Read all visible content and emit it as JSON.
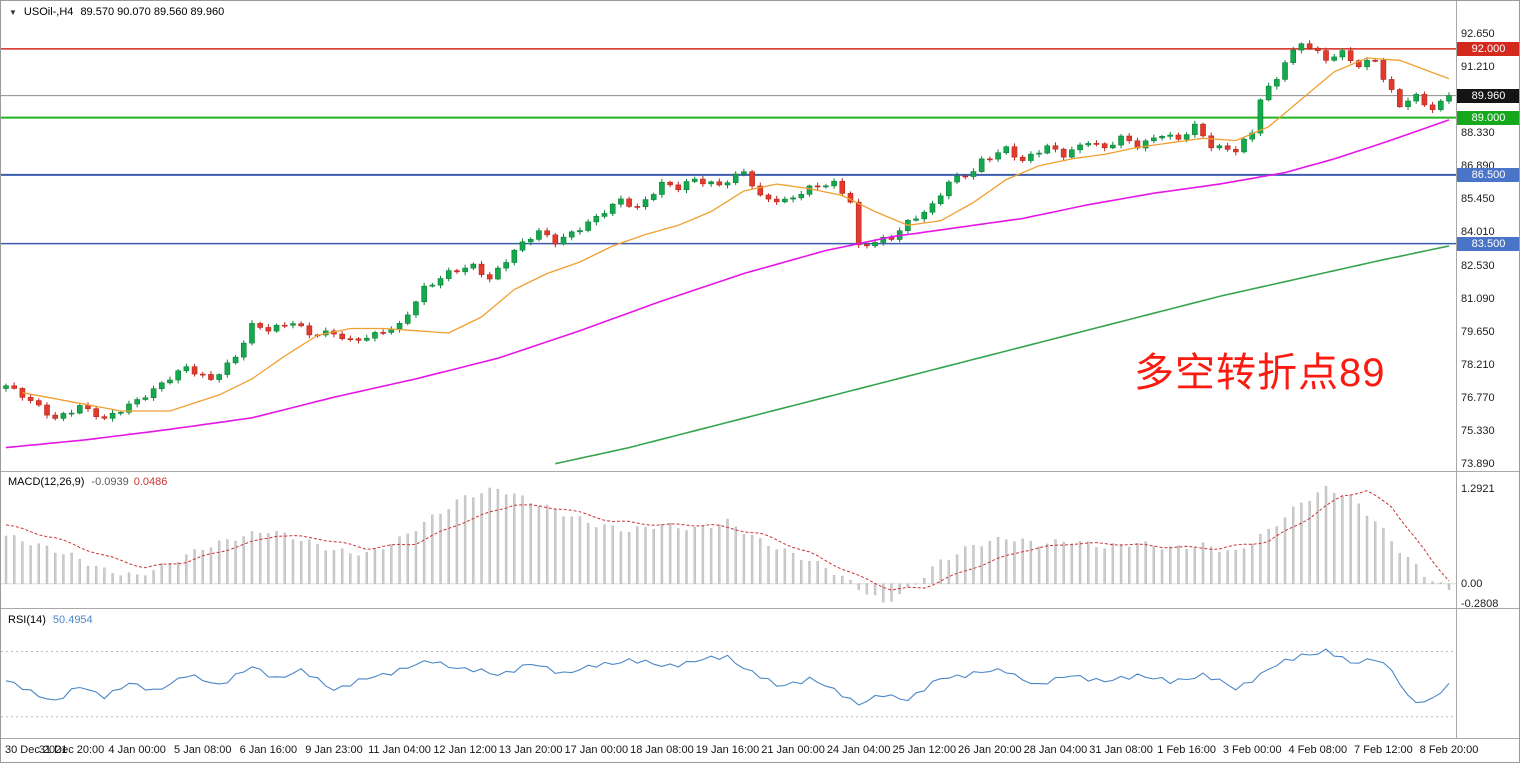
{
  "header": {
    "symbol": "USOil-,H4",
    "ohlc": "89.570 90.070 89.560 89.960",
    "dropdown_glyph": "▼"
  },
  "annotation": {
    "text": "多空转折点89",
    "color": "#fb1a10"
  },
  "chart_data": {
    "type": "candlestick",
    "symbol": "USOil",
    "timeframe": "H4",
    "current_bar": {
      "open": 89.57,
      "high": 90.07,
      "low": 89.56,
      "close": 89.96
    },
    "ylim": [
      73.58,
      93.74
    ],
    "grid": false,
    "candles": {
      "count": 177,
      "close_anchors": [
        [
          0,
          77.3
        ],
        [
          3,
          76.6
        ],
        [
          6,
          75.9
        ],
        [
          9,
          76.4
        ],
        [
          12,
          75.8
        ],
        [
          15,
          76.5
        ],
        [
          18,
          77.1
        ],
        [
          22,
          78.1
        ],
        [
          25,
          77.6
        ],
        [
          28,
          78.5
        ],
        [
          30,
          79.9
        ],
        [
          32,
          79.8
        ],
        [
          35,
          80.1
        ],
        [
          37,
          79.5
        ],
        [
          40,
          79.6
        ],
        [
          42,
          79.3
        ],
        [
          45,
          79.5
        ],
        [
          48,
          79.9
        ],
        [
          51,
          81.6
        ],
        [
          54,
          82.2
        ],
        [
          57,
          82.5
        ],
        [
          59,
          82.0
        ],
        [
          62,
          83.2
        ],
        [
          65,
          84.0
        ],
        [
          67,
          83.6
        ],
        [
          70,
          84.2
        ],
        [
          72,
          84.6
        ],
        [
          75,
          85.4
        ],
        [
          77,
          85.1
        ],
        [
          80,
          86.1
        ],
        [
          82,
          85.9
        ],
        [
          84,
          86.3
        ],
        [
          87,
          86.1
        ],
        [
          90,
          86.6
        ],
        [
          92,
          85.5
        ],
        [
          95,
          85.4
        ],
        [
          98,
          85.9
        ],
        [
          101,
          86.1
        ],
        [
          103,
          85.4
        ],
        [
          104,
          83.4
        ],
        [
          106,
          83.6
        ],
        [
          108,
          83.7
        ],
        [
          110,
          84.4
        ],
        [
          113,
          85.2
        ],
        [
          115,
          86.2
        ],
        [
          118,
          86.6
        ],
        [
          119,
          87.1
        ],
        [
          122,
          87.7
        ],
        [
          124,
          87.1
        ],
        [
          127,
          87.7
        ],
        [
          129,
          87.4
        ],
        [
          132,
          88.0
        ],
        [
          134,
          87.6
        ],
        [
          136,
          88.1
        ],
        [
          138,
          87.8
        ],
        [
          141,
          88.3
        ],
        [
          143,
          88.0
        ],
        [
          145,
          88.6
        ],
        [
          147,
          87.8
        ],
        [
          150,
          87.6
        ],
        [
          152,
          88.3
        ],
        [
          153,
          89.8
        ],
        [
          155,
          90.7
        ],
        [
          156,
          91.5
        ],
        [
          158,
          92.3
        ],
        [
          159,
          92.1
        ],
        [
          161,
          91.5
        ],
        [
          163,
          91.8
        ],
        [
          165,
          91.3
        ],
        [
          167,
          91.6
        ],
        [
          168,
          90.7
        ],
        [
          170,
          89.5
        ],
        [
          172,
          89.9
        ],
        [
          174,
          89.4
        ],
        [
          176,
          89.96
        ]
      ]
    },
    "levels": [
      {
        "price": 92.0,
        "color": "#d42a1e",
        "width": 1.4,
        "badge": "red"
      },
      {
        "price": 89.96,
        "color": "#8c8c8c",
        "width": 1,
        "badge": "black",
        "current": true
      },
      {
        "price": 89.0,
        "color": "#22b422",
        "width": 2,
        "badge": "green"
      },
      {
        "price": 86.5,
        "color": "#3c5cae",
        "width": 2,
        "badge": "blue"
      },
      {
        "price": 83.5,
        "color": "#3c5cae",
        "width": 1.5,
        "badge": "blue"
      }
    ],
    "price_axis": {
      "ticks": [
        92.65,
        91.21,
        88.33,
        86.89,
        85.45,
        84.01,
        82.53,
        81.09,
        79.65,
        78.21,
        76.77,
        75.33,
        73.89
      ]
    },
    "ma": [
      {
        "name": "ma-fast",
        "color": "#f0a030",
        "width": 1.3,
        "anchors": [
          [
            2,
            77.0
          ],
          [
            8,
            76.6
          ],
          [
            14,
            76.2
          ],
          [
            20,
            76.2
          ],
          [
            26,
            76.9
          ],
          [
            30,
            77.6
          ],
          [
            34,
            78.6
          ],
          [
            38,
            79.5
          ],
          [
            42,
            79.8
          ],
          [
            46,
            79.8
          ],
          [
            50,
            79.7
          ],
          [
            54,
            79.6
          ],
          [
            58,
            80.3
          ],
          [
            62,
            81.5
          ],
          [
            66,
            82.2
          ],
          [
            70,
            82.7
          ],
          [
            74,
            83.4
          ],
          [
            78,
            83.9
          ],
          [
            82,
            84.3
          ],
          [
            86,
            84.9
          ],
          [
            90,
            85.8
          ],
          [
            94,
            86.1
          ],
          [
            98,
            85.9
          ],
          [
            102,
            85.6
          ],
          [
            106,
            84.9
          ],
          [
            110,
            84.3
          ],
          [
            114,
            84.5
          ],
          [
            118,
            85.3
          ],
          [
            122,
            86.3
          ],
          [
            126,
            86.9
          ],
          [
            130,
            87.2
          ],
          [
            134,
            87.4
          ],
          [
            138,
            87.7
          ],
          [
            142,
            87.9
          ],
          [
            146,
            88.1
          ],
          [
            150,
            88.0
          ],
          [
            154,
            88.6
          ],
          [
            158,
            89.8
          ],
          [
            162,
            91.0
          ],
          [
            166,
            91.6
          ],
          [
            170,
            91.5
          ],
          [
            173,
            91.1
          ],
          [
            176,
            90.7
          ]
        ]
      },
      {
        "name": "ma-mid",
        "color": "#e616e6",
        "width": 1.6,
        "anchors": [
          [
            0,
            74.6
          ],
          [
            10,
            74.95
          ],
          [
            20,
            75.4
          ],
          [
            30,
            75.9
          ],
          [
            40,
            76.8
          ],
          [
            50,
            77.6
          ],
          [
            60,
            78.5
          ],
          [
            70,
            79.7
          ],
          [
            80,
            81.0
          ],
          [
            90,
            82.2
          ],
          [
            100,
            83.2
          ],
          [
            108,
            83.8
          ],
          [
            116,
            84.2
          ],
          [
            124,
            84.6
          ],
          [
            132,
            85.2
          ],
          [
            140,
            85.7
          ],
          [
            148,
            86.1
          ],
          [
            156,
            86.6
          ],
          [
            162,
            87.2
          ],
          [
            168,
            87.9
          ],
          [
            172,
            88.4
          ],
          [
            176,
            88.9
          ]
        ]
      },
      {
        "name": "ma-slow",
        "color": "#36a44e",
        "width": 1.6,
        "anchors": [
          [
            67,
            73.9
          ],
          [
            76,
            74.6
          ],
          [
            88,
            75.7
          ],
          [
            100,
            76.8
          ],
          [
            112,
            77.9
          ],
          [
            124,
            79.0
          ],
          [
            136,
            80.1
          ],
          [
            148,
            81.2
          ],
          [
            158,
            82.0
          ],
          [
            168,
            82.8
          ],
          [
            176,
            83.4
          ]
        ]
      }
    ],
    "macd": {
      "label": "MACD(12,26,9)",
      "value_main": "-0.0939",
      "value_signal": "0.0486",
      "axis": [
        "1.2921",
        "0.00",
        "-0.2808"
      ],
      "ylim": [
        -0.33,
        1.52
      ],
      "bar_color": "#cccccc",
      "bar_stroke": "#b2b2b2",
      "signal_color": "#cc3333",
      "hist_anchors": [
        [
          0,
          0.65
        ],
        [
          4,
          0.52
        ],
        [
          8,
          0.38
        ],
        [
          12,
          0.18
        ],
        [
          16,
          0.1
        ],
        [
          20,
          0.28
        ],
        [
          24,
          0.48
        ],
        [
          28,
          0.62
        ],
        [
          32,
          0.72
        ],
        [
          36,
          0.6
        ],
        [
          40,
          0.45
        ],
        [
          44,
          0.4
        ],
        [
          48,
          0.6
        ],
        [
          52,
          0.9
        ],
        [
          56,
          1.18
        ],
        [
          60,
          1.29
        ],
        [
          64,
          1.12
        ],
        [
          68,
          0.95
        ],
        [
          72,
          0.8
        ],
        [
          76,
          0.72
        ],
        [
          80,
          0.8
        ],
        [
          84,
          0.74
        ],
        [
          88,
          0.84
        ],
        [
          92,
          0.58
        ],
        [
          96,
          0.4
        ],
        [
          100,
          0.22
        ],
        [
          104,
          -0.05
        ],
        [
          107,
          -0.26
        ],
        [
          110,
          -0.08
        ],
        [
          114,
          0.3
        ],
        [
          118,
          0.52
        ],
        [
          122,
          0.62
        ],
        [
          126,
          0.54
        ],
        [
          130,
          0.58
        ],
        [
          134,
          0.5
        ],
        [
          138,
          0.55
        ],
        [
          142,
          0.48
        ],
        [
          146,
          0.52
        ],
        [
          150,
          0.42
        ],
        [
          154,
          0.72
        ],
        [
          158,
          1.1
        ],
        [
          161,
          1.29
        ],
        [
          164,
          1.18
        ],
        [
          167,
          0.85
        ],
        [
          170,
          0.45
        ],
        [
          173,
          0.12
        ],
        [
          176,
          -0.09
        ]
      ],
      "signal_anchors": [
        [
          0,
          0.8
        ],
        [
          6,
          0.62
        ],
        [
          12,
          0.38
        ],
        [
          17,
          0.22
        ],
        [
          22,
          0.3
        ],
        [
          28,
          0.5
        ],
        [
          33,
          0.66
        ],
        [
          38,
          0.62
        ],
        [
          44,
          0.48
        ],
        [
          50,
          0.55
        ],
        [
          56,
          0.85
        ],
        [
          62,
          1.08
        ],
        [
          68,
          1.02
        ],
        [
          74,
          0.85
        ],
        [
          80,
          0.8
        ],
        [
          86,
          0.8
        ],
        [
          92,
          0.68
        ],
        [
          98,
          0.42
        ],
        [
          104,
          0.1
        ],
        [
          108,
          -0.08
        ],
        [
          112,
          -0.05
        ],
        [
          118,
          0.22
        ],
        [
          124,
          0.45
        ],
        [
          130,
          0.55
        ],
        [
          136,
          0.54
        ],
        [
          142,
          0.5
        ],
        [
          148,
          0.48
        ],
        [
          154,
          0.58
        ],
        [
          159,
          0.9
        ],
        [
          163,
          1.2
        ],
        [
          166,
          1.26
        ],
        [
          169,
          1.05
        ],
        [
          172,
          0.6
        ],
        [
          174,
          0.3
        ],
        [
          176,
          0.05
        ]
      ]
    },
    "rsi": {
      "label": "RSI(14)",
      "value": "50.4954",
      "levels": [
        70,
        30
      ],
      "ylim": [
        17,
        96
      ],
      "line_color": "#4a87c7",
      "anchors": [
        [
          0,
          52
        ],
        [
          3,
          45
        ],
        [
          6,
          40
        ],
        [
          9,
          48
        ],
        [
          12,
          43
        ],
        [
          15,
          50
        ],
        [
          18,
          46
        ],
        [
          22,
          55
        ],
        [
          26,
          50
        ],
        [
          30,
          60
        ],
        [
          33,
          54
        ],
        [
          36,
          58
        ],
        [
          40,
          47
        ],
        [
          44,
          53
        ],
        [
          48,
          59
        ],
        [
          52,
          64
        ],
        [
          56,
          59
        ],
        [
          60,
          56
        ],
        [
          64,
          62
        ],
        [
          68,
          57
        ],
        [
          72,
          61
        ],
        [
          76,
          65
        ],
        [
          80,
          61
        ],
        [
          84,
          64
        ],
        [
          88,
          67
        ],
        [
          91,
          57
        ],
        [
          94,
          49
        ],
        [
          98,
          53
        ],
        [
          102,
          44
        ],
        [
          104,
          38
        ],
        [
          107,
          43
        ],
        [
          110,
          41
        ],
        [
          114,
          53
        ],
        [
          118,
          57
        ],
        [
          122,
          58
        ],
        [
          126,
          49
        ],
        [
          130,
          56
        ],
        [
          134,
          51
        ],
        [
          138,
          56
        ],
        [
          142,
          51
        ],
        [
          146,
          56
        ],
        [
          150,
          47
        ],
        [
          154,
          59
        ],
        [
          158,
          68
        ],
        [
          161,
          70
        ],
        [
          164,
          63
        ],
        [
          167,
          66
        ],
        [
          169,
          58
        ],
        [
          171,
          42
        ],
        [
          173,
          39
        ],
        [
          175,
          45
        ],
        [
          176,
          50.5
        ]
      ]
    },
    "time_axis": [
      "30 Dec 2021",
      "31 Dec 20:00",
      "4 Jan 00:00",
      "5 Jan 08:00",
      "6 Jan 16:00",
      "9 Jan 23:00",
      "11 Jan 04:00",
      "12 Jan 12:00",
      "13 Jan 20:00",
      "17 Jan 00:00",
      "18 Jan 08:00",
      "19 Jan 16:00",
      "21 Jan 00:00",
      "24 Jan 04:00",
      "25 Jan 12:00",
      "26 Jan 20:00",
      "28 Jan 04:00",
      "31 Jan 08:00",
      "1 Feb 16:00",
      "3 Feb 00:00",
      "4 Feb 08:00",
      "7 Feb 12:00",
      "8 Feb 20:00"
    ],
    "colors": {
      "up": "#14a94c",
      "up_stroke": "#0c8038",
      "down": "#e23b2e",
      "down_stroke": "#b8261c"
    }
  }
}
